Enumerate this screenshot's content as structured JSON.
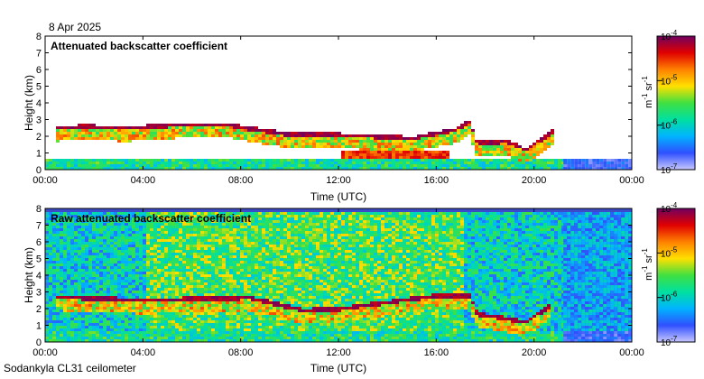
{
  "date": "8 Apr 2025",
  "footer": "Sodankyla CL31 ceilometer",
  "colorbar": {
    "unit_main": "m",
    "unit_sup1": "-1",
    "unit_mid": " sr",
    "unit_sup2": "-1",
    "ticks": [
      {
        "base": "10",
        "exp": "-4",
        "value": 0.0001
      },
      {
        "base": "10",
        "exp": "-5",
        "value": 1e-05
      },
      {
        "base": "10",
        "exp": "-6",
        "value": 1e-06
      },
      {
        "base": "10",
        "exp": "-7",
        "value": 1e-07
      }
    ],
    "scale": "log",
    "colors": [
      "#c8c8ff",
      "#3050ff",
      "#00b4ff",
      "#00e0a0",
      "#40e040",
      "#ffe000",
      "#ff8000",
      "#e00000",
      "#700060"
    ]
  },
  "chart_data": [
    {
      "type": "heatmap",
      "title": "Attenuated backscatter coefficient",
      "xlabel": "Time (UTC)",
      "ylabel": "Height (km)",
      "xlim": [
        "00:00",
        "24:00"
      ],
      "ylim": [
        0,
        8
      ],
      "xticks": [
        "00:00",
        "04:00",
        "08:00",
        "12:00",
        "16:00",
        "20:00",
        "00:00"
      ],
      "yticks": [
        "0",
        "1",
        "2",
        "3",
        "4",
        "5",
        "6",
        "7",
        "8"
      ],
      "cloud_layer_km": [
        [
          0.3,
          2.4
        ],
        [
          1.5,
          2.5
        ],
        [
          3.2,
          2.4
        ],
        [
          5.5,
          2.6
        ],
        [
          7.5,
          2.6
        ],
        [
          8.2,
          2.4
        ],
        [
          10,
          2.0
        ],
        [
          11.8,
          2.0
        ],
        [
          15.0,
          1.8
        ],
        [
          16.7,
          2.3
        ],
        [
          17.3,
          2.8
        ],
        [
          17.6,
          1.5
        ],
        [
          18.8,
          1.6
        ],
        [
          19.6,
          1.1
        ],
        [
          20.5,
          2.0
        ],
        [
          20.8,
          2.3
        ]
      ]
    },
    {
      "type": "heatmap",
      "title": "Raw attenuated backscatter coefficient",
      "xlabel": "Time (UTC)",
      "ylabel": "Height (km)",
      "xlim": [
        "00:00",
        "24:00"
      ],
      "ylim": [
        0,
        8
      ],
      "xticks": [
        "00:00",
        "04:00",
        "08:00",
        "12:00",
        "16:00",
        "20:00",
        "00:00"
      ],
      "yticks": [
        "0",
        "1",
        "2",
        "3",
        "4",
        "5",
        "6",
        "7",
        "8"
      ],
      "cloud_layer_km": [
        [
          0.3,
          2.6
        ],
        [
          2.5,
          2.5
        ],
        [
          4.0,
          2.4
        ],
        [
          6.0,
          2.5
        ],
        [
          7.5,
          2.5
        ],
        [
          8.2,
          2.6
        ],
        [
          10.5,
          1.8
        ],
        [
          12.0,
          1.9
        ],
        [
          16.0,
          2.7
        ],
        [
          17.3,
          2.7
        ],
        [
          17.6,
          1.6
        ],
        [
          19.6,
          1.1
        ],
        [
          20.6,
          2.1
        ]
      ]
    }
  ]
}
